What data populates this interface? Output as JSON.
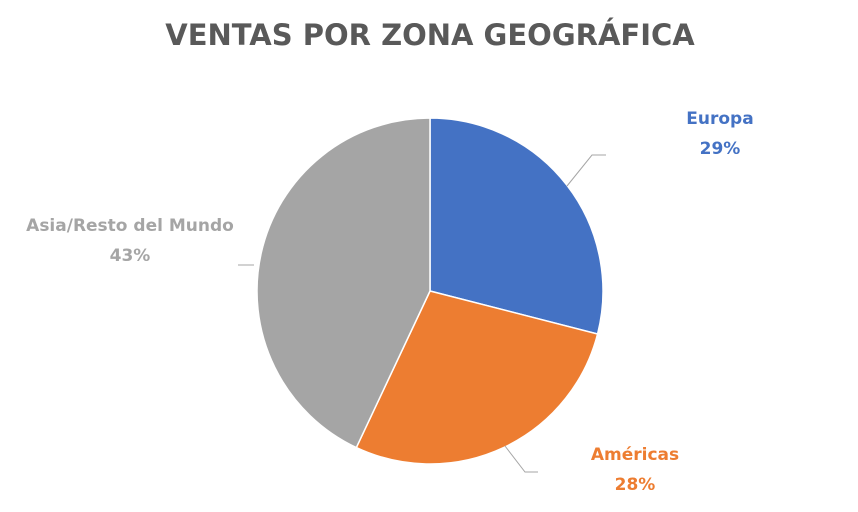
{
  "chart_data": {
    "type": "pie",
    "title": "VENTAS POR ZONA GEOGRÁFICA",
    "categories": [
      "Europa",
      "Américas",
      "Asia/Resto del Mundo"
    ],
    "values": [
      29,
      28,
      43
    ],
    "value_labels": [
      "29%",
      "28%",
      "43%"
    ],
    "colors": [
      "#4472c4",
      "#ed7d31",
      "#a5a5a5"
    ]
  }
}
